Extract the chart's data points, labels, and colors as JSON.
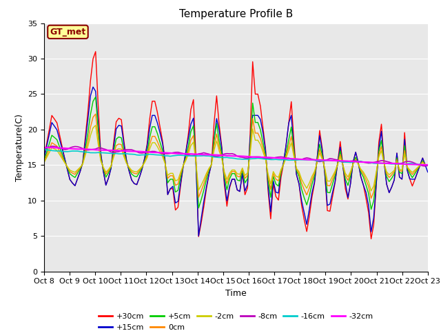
{
  "title": "Temperature Profile B",
  "xlabel": "Time",
  "ylabel": "Temperature(C)",
  "annotation": "GT_met",
  "ylim": [
    0,
    35
  ],
  "xlim": [
    0,
    15
  ],
  "x_tick_labels": [
    "Oct 8",
    "Oct 9",
    "Oct 10",
    "Oct 11",
    "Oct 12",
    "Oct 13",
    "Oct 14",
    "Oct 15",
    "Oct 16",
    "Oct 17",
    "Oct 18",
    "Oct 19",
    "Oct 20",
    "Oct 21",
    "Oct 22",
    "Oct 23"
  ],
  "series_order": [
    "+30cm",
    "+15cm",
    "+5cm",
    "0cm",
    "-2cm",
    "-8cm",
    "-16cm",
    "-32cm"
  ],
  "series": {
    "+30cm": {
      "color": "#FF0000",
      "lw": 1.0
    },
    "+15cm": {
      "color": "#0000CC",
      "lw": 1.0
    },
    "+5cm": {
      "color": "#00CC00",
      "lw": 1.0
    },
    "0cm": {
      "color": "#FF8800",
      "lw": 1.0
    },
    "-2cm": {
      "color": "#CCCC00",
      "lw": 1.0
    },
    "-8cm": {
      "color": "#BB00BB",
      "lw": 1.2
    },
    "-16cm": {
      "color": "#00CCCC",
      "lw": 1.2
    },
    "-32cm": {
      "color": "#FF00FF",
      "lw": 1.5
    }
  },
  "bg_color": "#E8E8E8",
  "plot_bg": "#E8E8E8",
  "title_fontsize": 11,
  "axis_fontsize": 9,
  "tick_fontsize": 8,
  "legend_fontsize": 8
}
